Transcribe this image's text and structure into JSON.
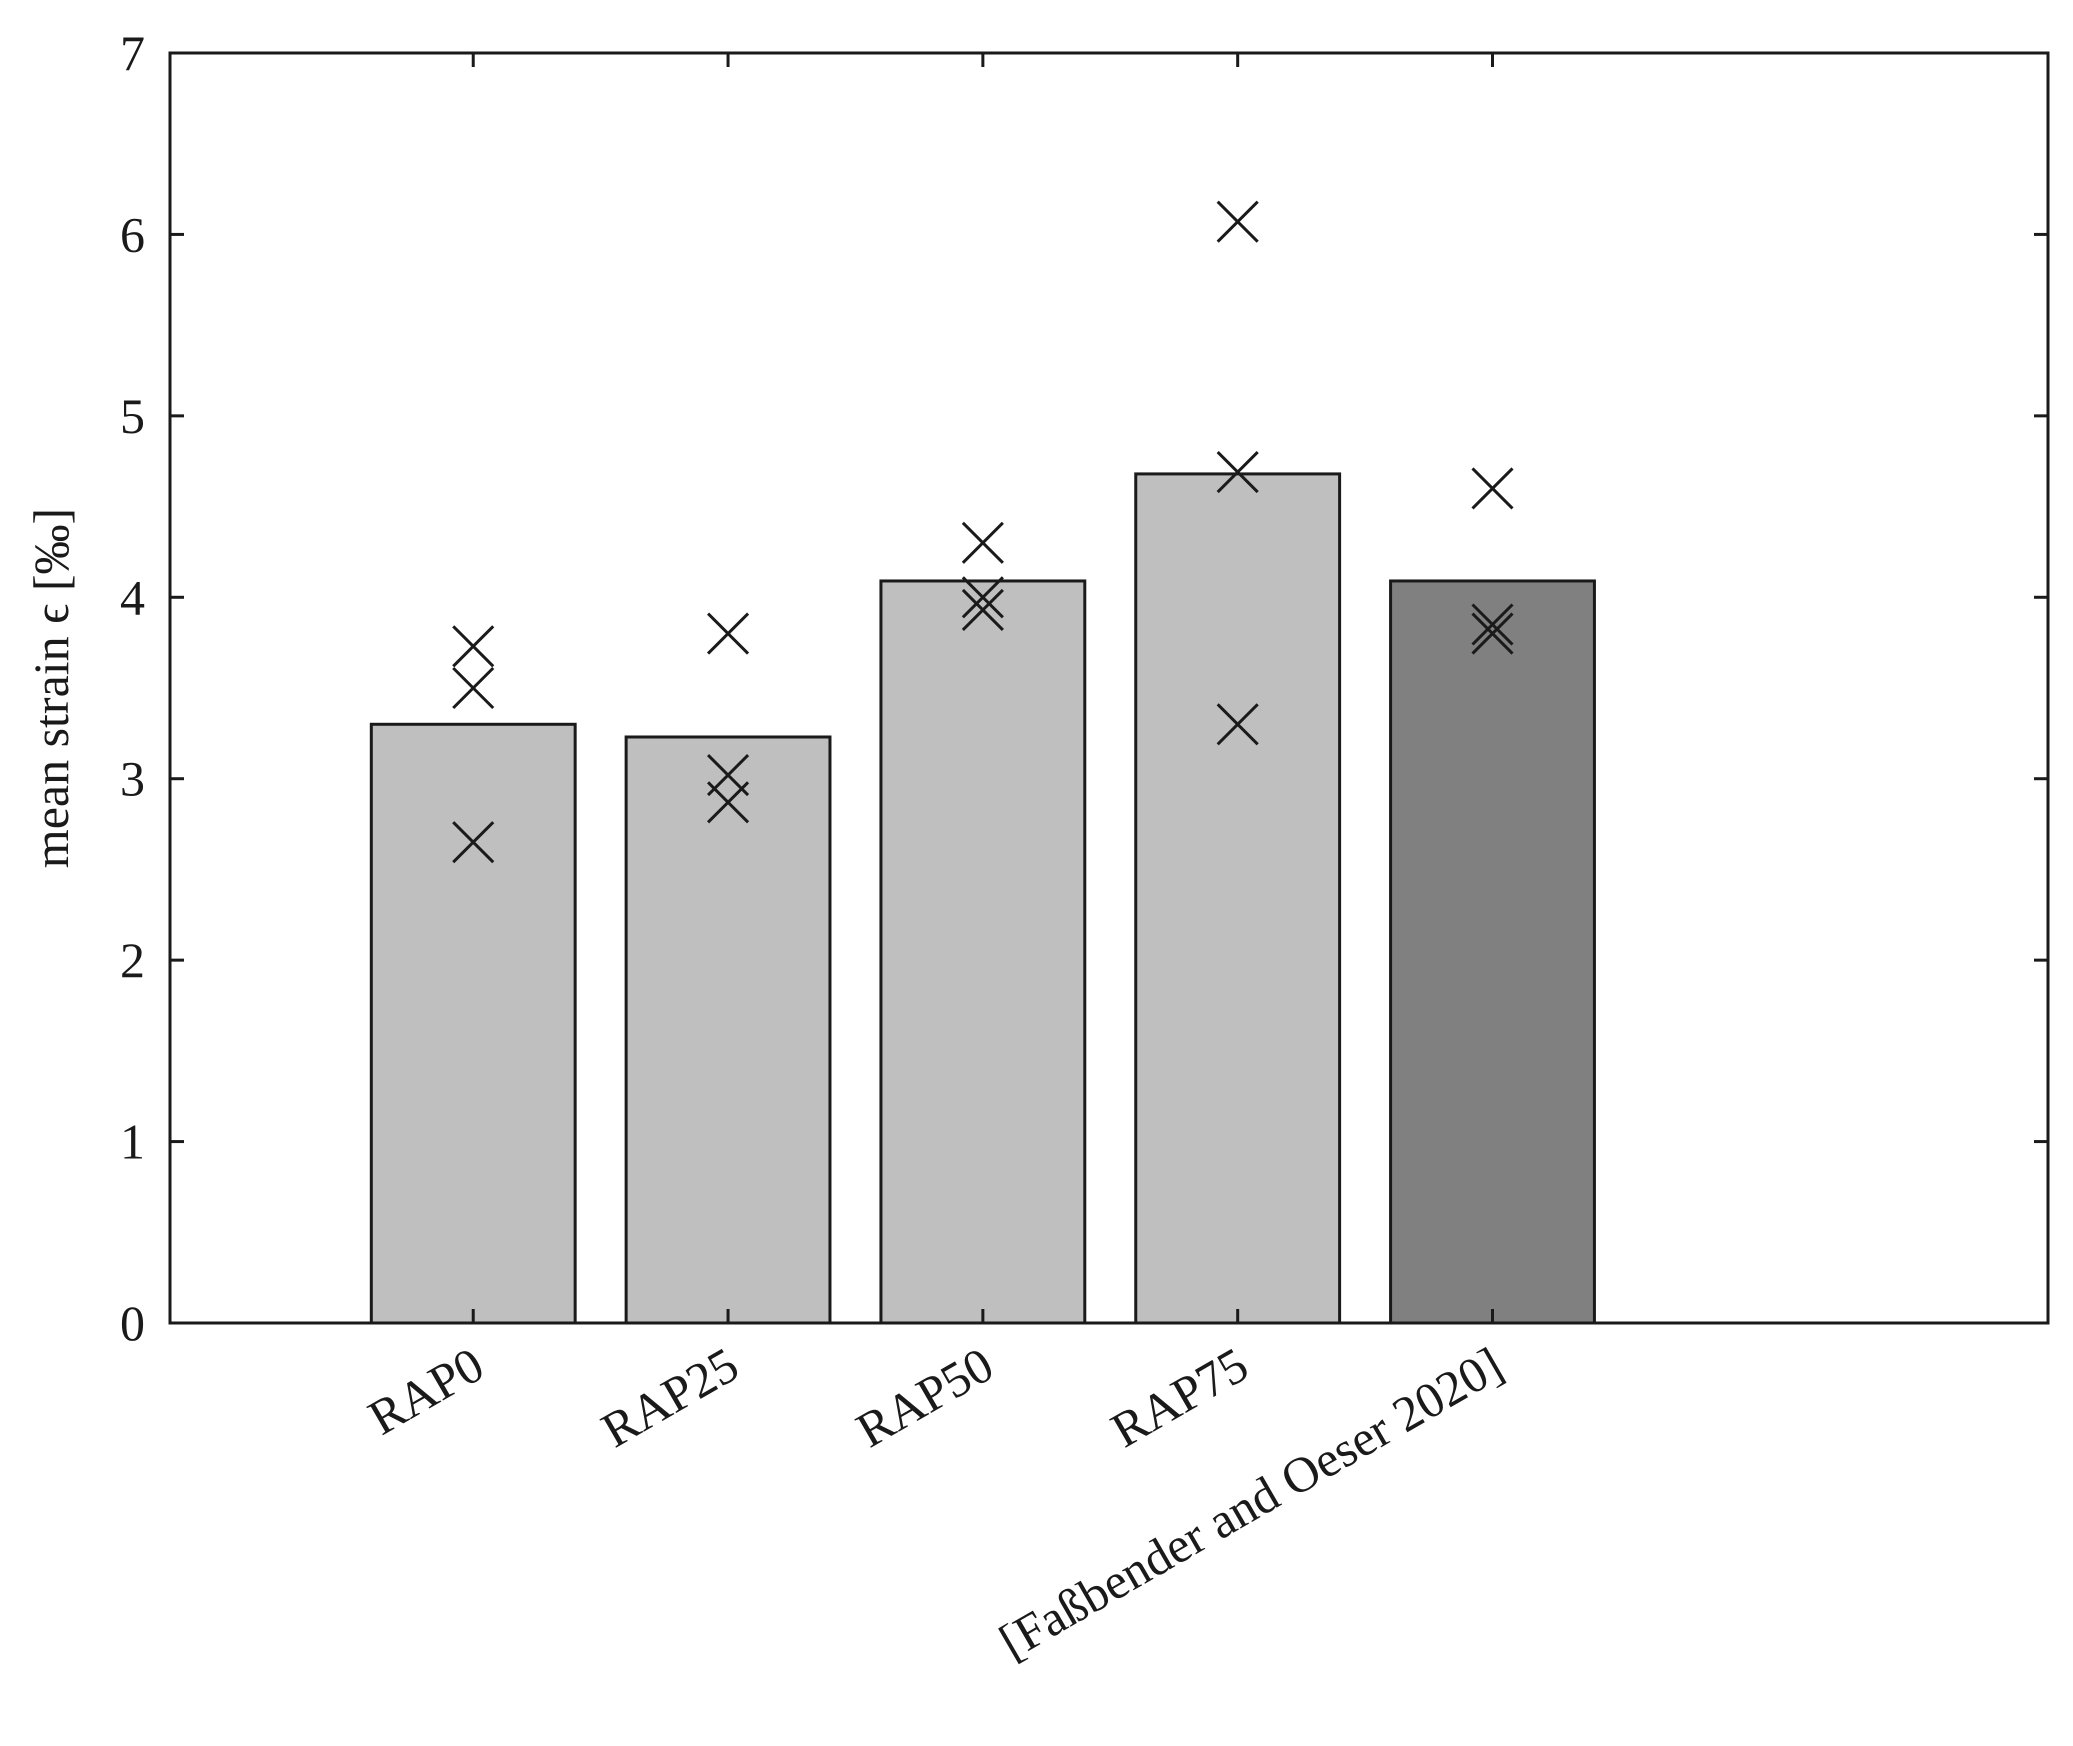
{
  "chart_data": {
    "type": "bar",
    "title": "",
    "xlabel": "",
    "ylabel": "mean strain ϵ [‰]",
    "ylim": [
      0,
      7
    ],
    "yticks": [
      0,
      1,
      2,
      3,
      4,
      5,
      6,
      7
    ],
    "grid": false,
    "legend": "none",
    "categories": [
      "RAP0",
      "RAP25",
      "RAP50",
      "RAP75",
      "[Faßbender and Oeser 2020]"
    ],
    "values": [
      3.3,
      3.23,
      4.09,
      4.68,
      4.09
    ],
    "bar_colors": [
      "#bfbfbf",
      "#bfbfbf",
      "#bfbfbf",
      "#bfbfbf",
      "#808080"
    ],
    "markers": {
      "symbol": "x",
      "points": [
        {
          "category": "RAP0",
          "values": [
            3.73,
            3.5,
            2.65
          ]
        },
        {
          "category": "RAP25",
          "values": [
            3.8,
            3.02,
            2.87
          ]
        },
        {
          "category": "RAP50",
          "values": [
            4.3,
            4.0,
            3.93
          ]
        },
        {
          "category": "RAP75",
          "values": [
            6.07,
            4.69,
            3.3
          ]
        },
        {
          "category": "[Faßbender and Oeser 2020]",
          "values": [
            4.6,
            3.85,
            3.8
          ]
        }
      ]
    }
  }
}
